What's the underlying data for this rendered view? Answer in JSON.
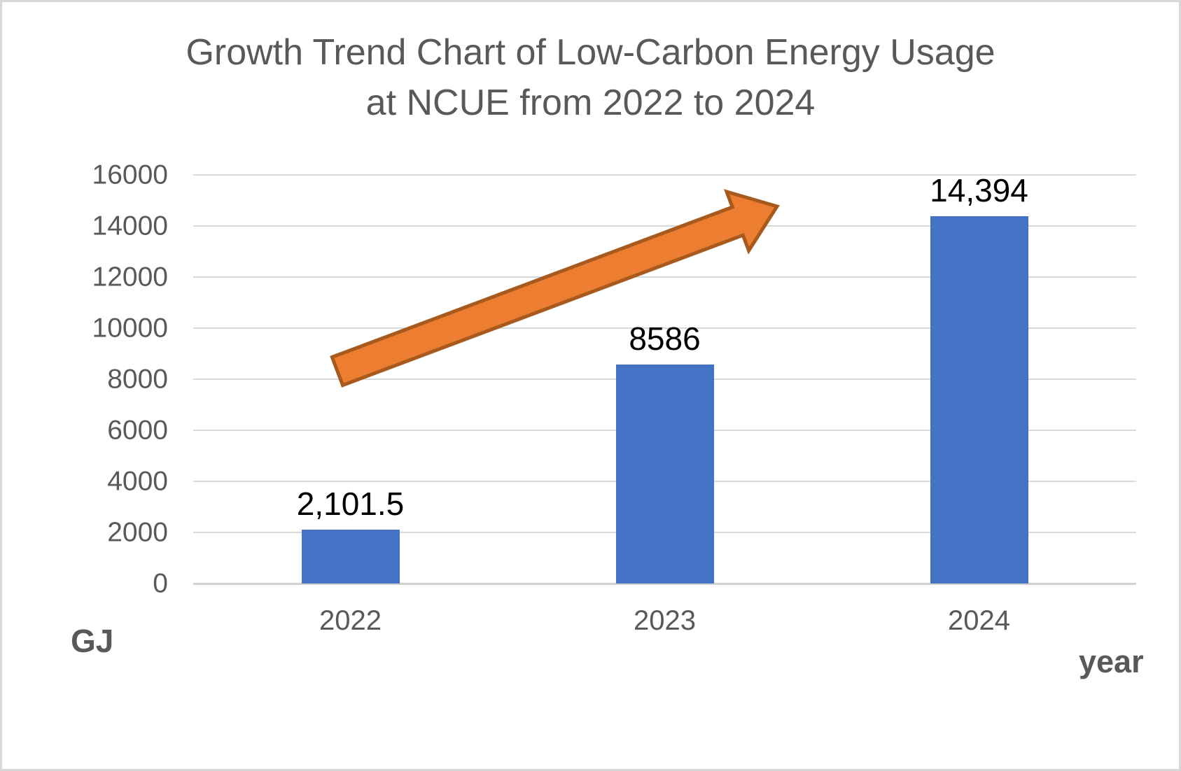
{
  "chart_data": {
    "type": "bar",
    "title_line1": "Growth Trend Chart of Low-Carbon Energy Usage",
    "title_line2": "at NCUE from 2022 to 2024",
    "title": "Growth Trend Chart of Low-Carbon Energy Usage at NCUE from 2022 to 2024",
    "categories": [
      "2022",
      "2023",
      "2024"
    ],
    "values": [
      2101.5,
      8586,
      14394
    ],
    "value_labels": [
      "2,101.5",
      "8586",
      "14,394"
    ],
    "xlabel": "year",
    "ylabel": "GJ",
    "ylim": [
      0,
      16000
    ],
    "ytick_interval": 2000,
    "yticks": [
      0,
      2000,
      4000,
      6000,
      8000,
      10000,
      12000,
      14000,
      16000
    ],
    "grid": true,
    "legend": "none",
    "annotations": [
      {
        "name": "growth-arrow",
        "shape": "block-arrow",
        "direction": "up-right"
      }
    ],
    "colors": {
      "bar": "#4472C4",
      "arrow_fill": "#ED7D31",
      "arrow_stroke": "#A85A1E",
      "title_text": "#595959",
      "axis_text": "#595959",
      "data_label_text": "#000000",
      "gridline": "#D9D9D9",
      "background": "#FFFFFF",
      "border": "#D8D8D8"
    }
  }
}
